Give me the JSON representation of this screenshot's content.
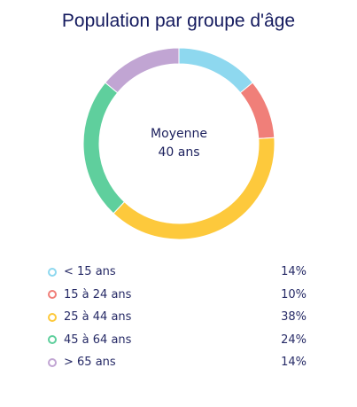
{
  "chart_data": {
    "type": "pie",
    "title": "Population par groupe d'âge",
    "center_label": {
      "line1": "Moyenne",
      "line2": "40 ans"
    },
    "categories": [
      "< 15 ans",
      "15 à 24 ans",
      "25 à 44 ans",
      "45 à 64 ans",
      "> 65 ans"
    ],
    "values": [
      14,
      10,
      38,
      24,
      14
    ],
    "value_labels": [
      "14%",
      "10%",
      "38%",
      "24%",
      "14%"
    ],
    "colors": [
      "#8ed8ef",
      "#f07f79",
      "#fdc93c",
      "#5fcf9d",
      "#c1a5d3"
    ],
    "legend_position": "bottom"
  }
}
